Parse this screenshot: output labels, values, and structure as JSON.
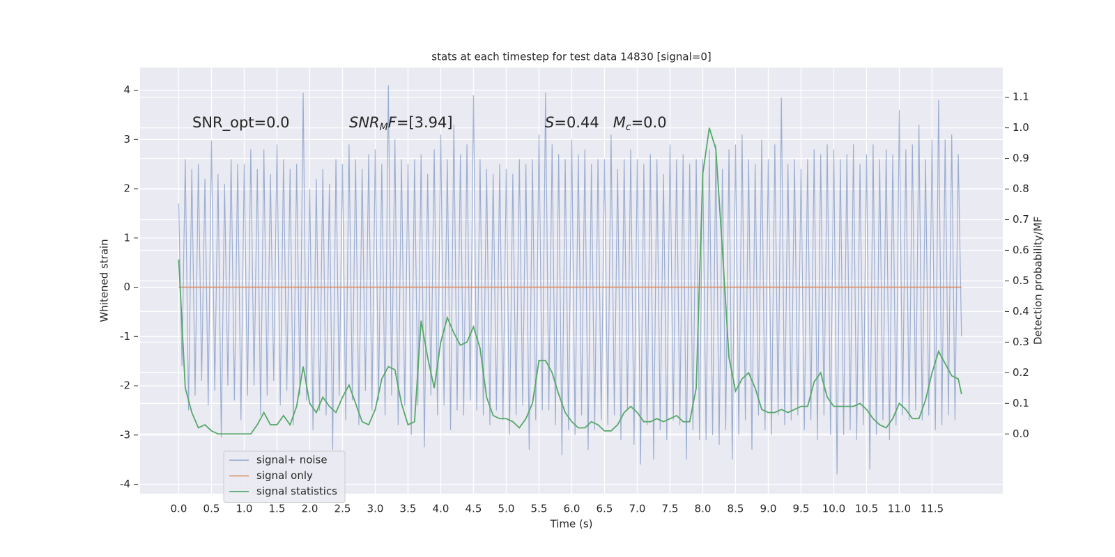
{
  "chart_data": {
    "type": "line",
    "title": "stats at each timestep for test data 14830 [signal=0]",
    "xlabel": "Time (s)",
    "ylabel": "Whitened strain",
    "y2label": "Detection probability/MF",
    "xlim": [
      -0.59,
      12.58
    ],
    "ylim": [
      -4.19,
      4.46
    ],
    "y2lim": [
      -0.195,
      1.197
    ],
    "xticks": [
      {
        "value": 0,
        "label": "0.0"
      },
      0.5,
      {
        "value": 1,
        "label": "1.0"
      },
      1.5,
      {
        "value": 2,
        "label": "2.0"
      },
      2.5,
      {
        "value": 3,
        "label": "3.0"
      },
      3.5,
      {
        "value": 4,
        "label": "4.0"
      },
      4.5,
      {
        "value": 5,
        "label": "5.0"
      },
      5.5,
      {
        "value": 6,
        "label": "6.0"
      },
      6.5,
      {
        "value": 7,
        "label": "7.0"
      },
      7.5,
      {
        "value": 8,
        "label": "8.0"
      },
      8.5,
      {
        "value": 9,
        "label": "9.0"
      },
      9.5,
      {
        "value": 10,
        "label": "10.0"
      },
      10.5,
      {
        "value": 11,
        "label": "11.0"
      },
      11.5
    ],
    "yticks": [
      -4,
      -3,
      -2,
      -1,
      0,
      1,
      2,
      3,
      4
    ],
    "y2ticks": [
      {
        "value": 0,
        "label": "0.0"
      },
      0.1,
      0.2,
      0.3,
      0.4,
      0.5,
      0.6,
      0.7,
      0.8,
      0.9,
      {
        "value": 1,
        "label": "1.0"
      },
      1.1
    ],
    "grid": true,
    "legend": "lower left",
    "annotations": [
      [
        {
          "text": "SNR_opt=0.0"
        }
      ],
      [
        {
          "text": "SNR",
          "italic": true
        },
        {
          "text": "M",
          "italic": true,
          "sub": true
        },
        {
          "text": "F",
          "italic": true
        },
        {
          "text": "=[3.94]"
        }
      ],
      [
        {
          "text": "S",
          "italic": true
        },
        {
          "text": "=0.44   "
        },
        {
          "text": "M",
          "italic": true
        },
        {
          "text": "c",
          "italic": true,
          "sub": true
        },
        {
          "text": "=0.0"
        }
      ]
    ],
    "series": [
      {
        "name": "signal+ noise",
        "color": "#4c72b0",
        "opacity": 0.5,
        "x": [
          0,
          0.05,
          0.1,
          0.15,
          0.2,
          0.25,
          0.3,
          0.35,
          0.4,
          0.45,
          0.5,
          0.55,
          0.6,
          0.65,
          0.7,
          0.75,
          0.8,
          0.85,
          0.9,
          0.95,
          1,
          1.05,
          1.1,
          1.15,
          1.2,
          1.25,
          1.3,
          1.35,
          1.4,
          1.45,
          1.5,
          1.55,
          1.6,
          1.65,
          1.7,
          1.75,
          1.8,
          1.85,
          1.9,
          1.95,
          2,
          2.05,
          2.1,
          2.15,
          2.2,
          2.25,
          2.3,
          2.35,
          2.4,
          2.45,
          2.5,
          2.55,
          2.6,
          2.65,
          2.7,
          2.75,
          2.8,
          2.85,
          2.9,
          2.95,
          3,
          3.05,
          3.1,
          3.15,
          3.2,
          3.25,
          3.3,
          3.35,
          3.4,
          3.45,
          3.5,
          3.55,
          3.6,
          3.65,
          3.7,
          3.75,
          3.8,
          3.85,
          3.9,
          3.95,
          4,
          4.05,
          4.1,
          4.15,
          4.2,
          4.25,
          4.3,
          4.35,
          4.4,
          4.45,
          4.5,
          4.55,
          4.6,
          4.65,
          4.7,
          4.75,
          4.8,
          4.85,
          4.9,
          4.95,
          5,
          5.05,
          5.1,
          5.15,
          5.2,
          5.25,
          5.3,
          5.35,
          5.4,
          5.45,
          5.5,
          5.55,
          5.6,
          5.65,
          5.7,
          5.75,
          5.8,
          5.85,
          5.9,
          5.95,
          6,
          6.05,
          6.1,
          6.15,
          6.2,
          6.25,
          6.3,
          6.35,
          6.4,
          6.45,
          6.5,
          6.55,
          6.6,
          6.65,
          6.7,
          6.75,
          6.8,
          6.85,
          6.9,
          6.95,
          7,
          7.05,
          7.1,
          7.15,
          7.2,
          7.25,
          7.3,
          7.35,
          7.4,
          7.45,
          7.5,
          7.55,
          7.6,
          7.65,
          7.7,
          7.75,
          7.8,
          7.85,
          7.9,
          7.95,
          8,
          8.05,
          8.1,
          8.15,
          8.2,
          8.25,
          8.3,
          8.35,
          8.4,
          8.45,
          8.5,
          8.55,
          8.6,
          8.65,
          8.7,
          8.75,
          8.8,
          8.85,
          8.9,
          8.95,
          9,
          9.05,
          9.1,
          9.15,
          9.2,
          9.25,
          9.3,
          9.35,
          9.4,
          9.45,
          9.5,
          9.55,
          9.6,
          9.65,
          9.7,
          9.75,
          9.8,
          9.85,
          9.9,
          9.95,
          10,
          10.05,
          10.1,
          10.15,
          10.2,
          10.25,
          10.3,
          10.35,
          10.4,
          10.45,
          10.5,
          10.55,
          10.6,
          10.65,
          10.7,
          10.75,
          10.8,
          10.85,
          10.9,
          10.95,
          11,
          11.05,
          11.1,
          11.15,
          11.2,
          11.25,
          11.3,
          11.35,
          11.4,
          11.45,
          11.5,
          11.55,
          11.6,
          11.65,
          11.7,
          11.75,
          11.8,
          11.85,
          11.9,
          11.95
        ],
        "values": [
          1.7,
          -1.6,
          2.6,
          -2.5,
          2.4,
          -2.2,
          2.5,
          -1.9,
          2.2,
          -2.4,
          2.98,
          -2.1,
          2.3,
          -3.05,
          2.1,
          -2.0,
          2.6,
          -2.3,
          2.5,
          -2.7,
          2.5,
          -2.2,
          2.8,
          -2.0,
          2.4,
          -2.6,
          2.8,
          -2.2,
          2.3,
          -1.9,
          2.9,
          -2.4,
          2.6,
          -2.1,
          2.4,
          -2.8,
          2.5,
          -2.2,
          3.95,
          -2.3,
          2.0,
          -2.9,
          2.2,
          -2.5,
          2.4,
          -2.6,
          2.1,
          -3.3,
          2.6,
          -2.2,
          2.5,
          -2.7,
          2.9,
          -2.3,
          2.6,
          -2.8,
          2.4,
          -2.1,
          2.7,
          -2.5,
          2.8,
          -2.3,
          2.5,
          -2.6,
          4.1,
          -2.2,
          3.0,
          -2.8,
          2.6,
          -2.4,
          2.5,
          -3.0,
          2.6,
          -2.4,
          2.7,
          -3.25,
          2.3,
          -2.2,
          2.8,
          -2.6,
          3.1,
          -2.4,
          2.6,
          -2.9,
          3.3,
          -2.5,
          2.7,
          -2.6,
          2.9,
          -2.3,
          3.9,
          -2.5,
          2.6,
          -2.6,
          2.4,
          -2.8,
          2.3,
          -2.5,
          2.5,
          -2.7,
          2.4,
          -3.0,
          2.3,
          -2.6,
          2.6,
          -2.4,
          2.5,
          -3.3,
          2.6,
          -2.7,
          3.1,
          -2.5,
          3.95,
          -2.5,
          2.9,
          -2.8,
          2.7,
          -3.4,
          2.6,
          -2.9,
          3.0,
          -3.0,
          2.7,
          -2.6,
          2.8,
          -3.3,
          2.5,
          -2.9,
          2.6,
          -2.7,
          2.6,
          -2.8,
          3.1,
          -2.6,
          2.4,
          -3.1,
          2.6,
          -2.5,
          2.8,
          -3.2,
          2.6,
          -3.6,
          2.5,
          -2.8,
          2.7,
          -3.5,
          2.6,
          -2.9,
          2.3,
          -3.1,
          2.9,
          -2.7,
          2.6,
          -2.8,
          2.7,
          -3.5,
          2.5,
          -2.9,
          2.6,
          -3.1,
          2.6,
          -3.1,
          2.8,
          -3.0,
          2.9,
          -3.2,
          2.4,
          -2.9,
          2.8,
          -3.5,
          2.9,
          -3.0,
          3.1,
          -2.7,
          2.6,
          -3.3,
          2.5,
          -2.6,
          3.0,
          -2.9,
          2.6,
          -3.0,
          2.9,
          -2.6,
          3.85,
          -2.8,
          2.5,
          -2.7,
          2.6,
          -2.6,
          2.4,
          -2.9,
          2.6,
          -2.7,
          2.8,
          -3.1,
          2.7,
          -2.6,
          2.9,
          -3.0,
          2.8,
          -3.8,
          2.6,
          -3.0,
          2.7,
          -2.9,
          2.9,
          -3.1,
          2.5,
          -2.8,
          2.7,
          -3.7,
          2.9,
          -3.0,
          2.6,
          -2.7,
          2.8,
          -3.1,
          2.7,
          -2.8,
          3.6,
          -2.6,
          2.8,
          -2.7,
          2.9,
          -2.5,
          3.3,
          -2.7,
          2.6,
          -2.6,
          3.0,
          -2.9,
          3.8,
          -2.8,
          3.0,
          -2.6,
          3.1,
          -2.7,
          2.7,
          -1.0
        ]
      },
      {
        "name": "signal only",
        "color": "#dd8452",
        "opacity": 0.8,
        "x": [
          0,
          11.95
        ],
        "values": [
          0,
          0
        ]
      },
      {
        "name": "signal statistics",
        "color": "#55a868",
        "opacity": 1,
        "axis": "y2",
        "x": [
          0,
          0.1,
          0.2,
          0.3,
          0.4,
          0.5,
          0.6,
          0.7,
          0.8,
          0.9,
          1,
          1.1,
          1.2,
          1.3,
          1.4,
          1.5,
          1.6,
          1.7,
          1.8,
          1.9,
          2,
          2.1,
          2.2,
          2.3,
          2.4,
          2.5,
          2.6,
          2.7,
          2.8,
          2.9,
          3,
          3.1,
          3.2,
          3.3,
          3.4,
          3.5,
          3.6,
          3.7,
          3.8,
          3.9,
          4,
          4.1,
          4.2,
          4.3,
          4.4,
          4.5,
          4.6,
          4.7,
          4.8,
          4.9,
          5,
          5.1,
          5.2,
          5.3,
          5.4,
          5.5,
          5.6,
          5.7,
          5.8,
          5.9,
          6,
          6.1,
          6.2,
          6.3,
          6.4,
          6.5,
          6.6,
          6.7,
          6.8,
          6.9,
          7,
          7.1,
          7.2,
          7.3,
          7.4,
          7.5,
          7.6,
          7.7,
          7.8,
          7.9,
          8,
          8.1,
          8.2,
          8.3,
          8.4,
          8.5,
          8.6,
          8.7,
          8.8,
          8.9,
          9,
          9.1,
          9.2,
          9.3,
          9.4,
          9.5,
          9.6,
          9.7,
          9.8,
          9.9,
          10,
          10.1,
          10.2,
          10.3,
          10.4,
          10.5,
          10.6,
          10.7,
          10.8,
          10.9,
          11,
          11.1,
          11.2,
          11.3,
          11.4,
          11.5,
          11.6,
          11.7,
          11.8,
          11.9,
          11.95
        ],
        "values": [
          0.57,
          0.15,
          0.07,
          0.02,
          0.03,
          0.01,
          0.0,
          0.0,
          0.0,
          0.0,
          0.0,
          0.0,
          0.03,
          0.07,
          0.03,
          0.03,
          0.06,
          0.03,
          0.09,
          0.22,
          0.1,
          0.07,
          0.12,
          0.09,
          0.07,
          0.12,
          0.16,
          0.1,
          0.04,
          0.03,
          0.08,
          0.18,
          0.22,
          0.21,
          0.1,
          0.03,
          0.04,
          0.37,
          0.25,
          0.15,
          0.3,
          0.38,
          0.33,
          0.29,
          0.3,
          0.35,
          0.28,
          0.12,
          0.06,
          0.05,
          0.05,
          0.04,
          0.02,
          0.05,
          0.1,
          0.24,
          0.24,
          0.2,
          0.13,
          0.07,
          0.04,
          0.02,
          0.02,
          0.04,
          0.03,
          0.01,
          0.01,
          0.03,
          0.07,
          0.09,
          0.07,
          0.04,
          0.04,
          0.05,
          0.04,
          0.05,
          0.06,
          0.04,
          0.04,
          0.15,
          0.85,
          1.0,
          0.93,
          0.6,
          0.25,
          0.14,
          0.18,
          0.2,
          0.15,
          0.08,
          0.07,
          0.07,
          0.08,
          0.07,
          0.08,
          0.09,
          0.09,
          0.17,
          0.2,
          0.12,
          0.09,
          0.09,
          0.09,
          0.09,
          0.1,
          0.08,
          0.05,
          0.03,
          0.02,
          0.05,
          0.1,
          0.08,
          0.05,
          0.05,
          0.11,
          0.2,
          0.27,
          0.23,
          0.19,
          0.18,
          0.13
        ]
      }
    ]
  }
}
